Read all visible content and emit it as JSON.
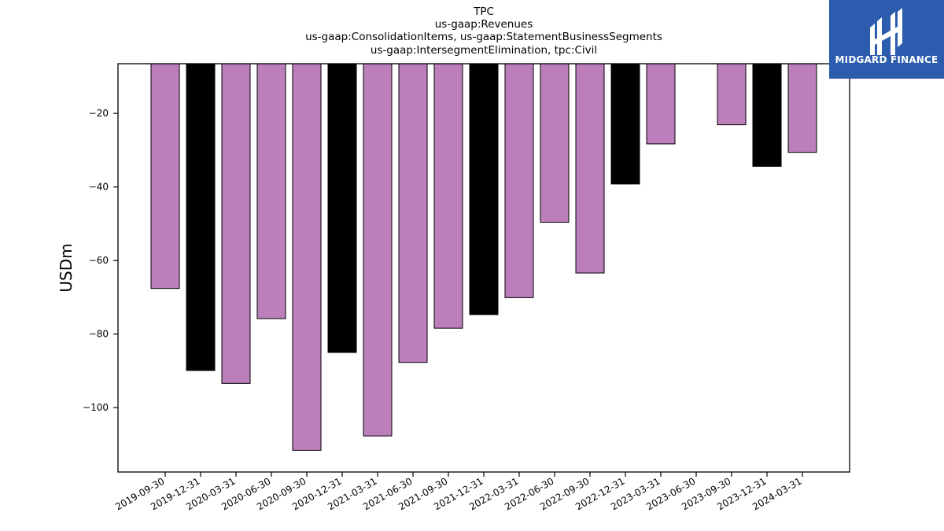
{
  "chart_data": {
    "type": "bar",
    "title": [
      "TPC",
      "us-gaap:Revenues",
      "us-gaap:ConsolidationItems, us-gaap:StatementBusinessSegments",
      "us-gaap:IntersegmentElimination, tpc:Civil"
    ],
    "xlabel": "",
    "ylabel": "USDm",
    "ylim": [
      -117.5,
      -6.5
    ],
    "yticks": [
      -20,
      -40,
      -60,
      -80,
      -100
    ],
    "ytick_labels": [
      "−20",
      "−40",
      "−60",
      "−80",
      "−100"
    ],
    "grid": false,
    "categories": [
      "2019-09-30",
      "2019-12-31",
      "2020-03-31",
      "2020-06-30",
      "2020-09-30",
      "2020-12-31",
      "2021-03-31",
      "2021-06-30",
      "2021-09-30",
      "2021-12-31",
      "2022-03-31",
      "2022-06-30",
      "2022-09-30",
      "2022-12-31",
      "2023-03-31",
      "2023-06-30",
      "2023-09-30",
      "2023-12-31",
      "2024-03-31"
    ],
    "values": [
      -67.6,
      -89.9,
      -93.4,
      -75.8,
      -111.6,
      -85.0,
      -107.7,
      -87.7,
      -78.4,
      -74.7,
      -70.1,
      -49.6,
      -63.4,
      -39.2,
      -28.3,
      null,
      -23.1,
      -34.4,
      -30.6
    ],
    "bar_colors": [
      "#bc7fbc",
      "#000000",
      "#bc7fbc",
      "#bc7fbc",
      "#bc7fbc",
      "#000000",
      "#bc7fbc",
      "#bc7fbc",
      "#bc7fbc",
      "#000000",
      "#bc7fbc",
      "#bc7fbc",
      "#bc7fbc",
      "#000000",
      "#bc7fbc",
      "#bc7fbc",
      "#bc7fbc",
      "#000000",
      "#bc7fbc"
    ]
  },
  "logo": {
    "text": "MIDGARD FINANCE",
    "background": "#2b5cad"
  }
}
